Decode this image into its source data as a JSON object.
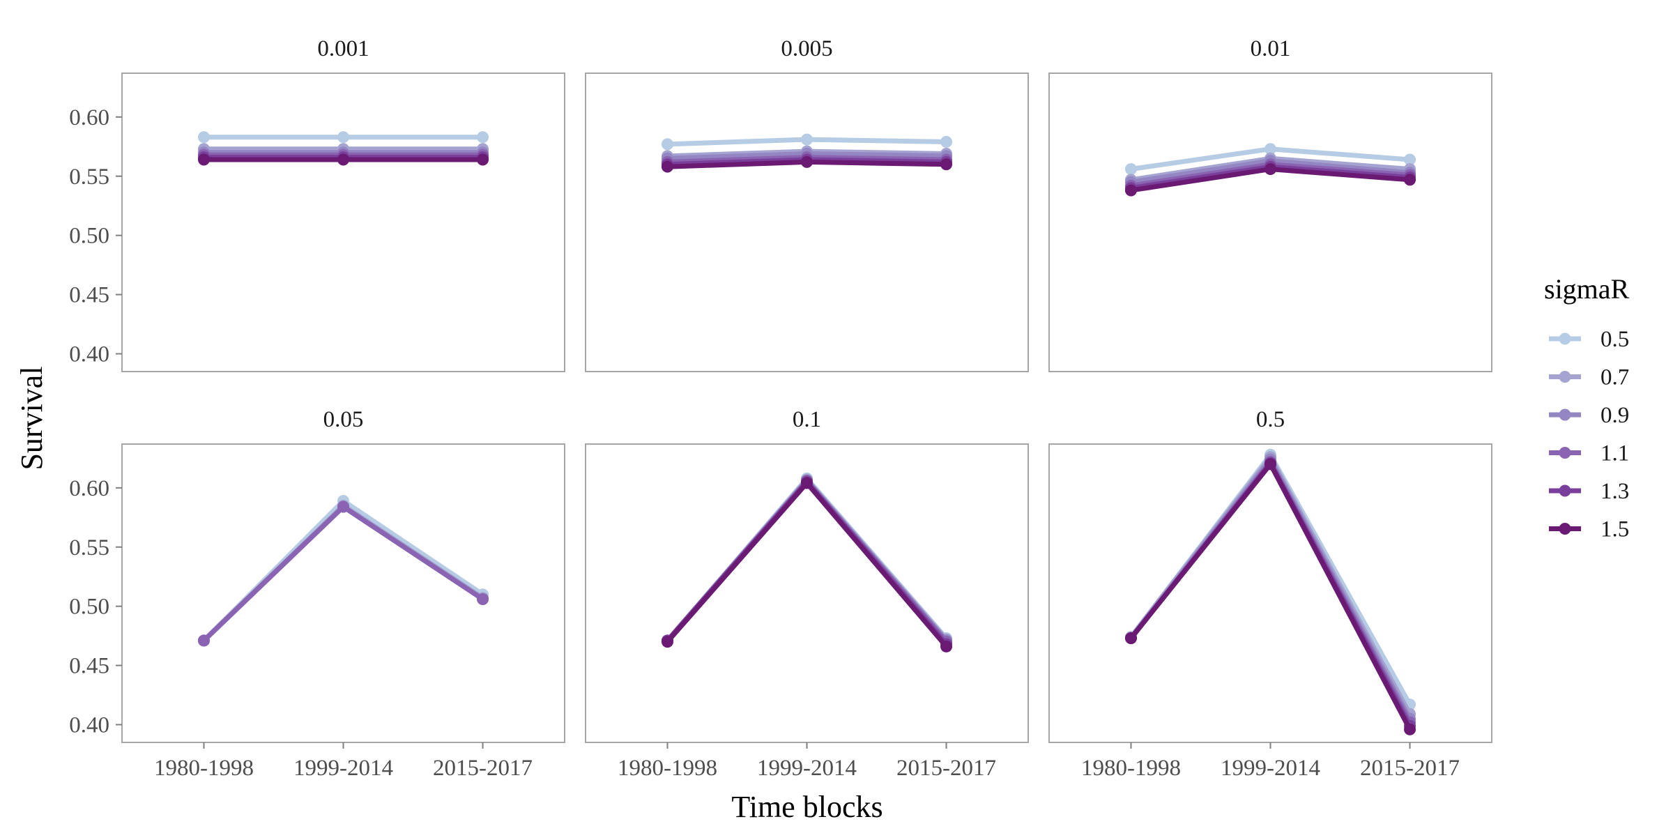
{
  "chart_data": {
    "type": "line",
    "facets": [
      "0.001",
      "0.005",
      "0.01",
      "0.05",
      "0.1",
      "0.5"
    ],
    "categories": [
      "1980-1998",
      "1999-2014",
      "2015-2017"
    ],
    "xlabel": "Time blocks",
    "ylabel": "Survival",
    "ylim": [
      0.385,
      0.637
    ],
    "yticks": [
      0.4,
      0.45,
      0.5,
      0.55,
      0.6
    ],
    "ytick_labels": [
      "0.40",
      "0.45",
      "0.50",
      "0.55",
      "0.60"
    ],
    "legend": {
      "title": "sigmaR",
      "position": "right",
      "entries": [
        "0.5",
        "0.7",
        "0.9",
        "1.1",
        "1.3",
        "1.5"
      ]
    },
    "grid": false,
    "colors": [
      "#b6cce4",
      "#a5a4d0",
      "#9485c3",
      "#8a64b2",
      "#7a3f9a",
      "#6a1a73"
    ],
    "panels": [
      {
        "facet": "0.001",
        "series": [
          {
            "name": "0.5",
            "values": [
              0.583,
              0.583,
              0.583
            ]
          },
          {
            "name": "0.7",
            "values": [
              0.573,
              0.573,
              0.573
            ]
          },
          {
            "name": "0.9",
            "values": [
              0.57,
              0.57,
              0.57
            ]
          },
          {
            "name": "1.1",
            "values": [
              0.568,
              0.568,
              0.568
            ]
          },
          {
            "name": "1.3",
            "values": [
              0.566,
              0.566,
              0.566
            ]
          },
          {
            "name": "1.5",
            "values": [
              0.564,
              0.564,
              0.564
            ]
          }
        ]
      },
      {
        "facet": "0.005",
        "series": [
          {
            "name": "0.5",
            "values": [
              0.577,
              0.581,
              0.579
            ]
          },
          {
            "name": "0.7",
            "values": [
              0.567,
              0.571,
              0.569
            ]
          },
          {
            "name": "0.9",
            "values": [
              0.565,
              0.569,
              0.567
            ]
          },
          {
            "name": "1.1",
            "values": [
              0.562,
              0.566,
              0.564
            ]
          },
          {
            "name": "1.3",
            "values": [
              0.56,
              0.564,
              0.562
            ]
          },
          {
            "name": "1.5",
            "values": [
              0.558,
              0.562,
              0.56
            ]
          }
        ]
      },
      {
        "facet": "0.01",
        "series": [
          {
            "name": "0.5",
            "values": [
              0.556,
              0.573,
              0.564
            ]
          },
          {
            "name": "0.7",
            "values": [
              0.547,
              0.565,
              0.556
            ]
          },
          {
            "name": "0.9",
            "values": [
              0.545,
              0.563,
              0.553
            ]
          },
          {
            "name": "1.1",
            "values": [
              0.542,
              0.56,
              0.551
            ]
          },
          {
            "name": "1.3",
            "values": [
              0.54,
              0.558,
              0.549
            ]
          },
          {
            "name": "1.5",
            "values": [
              0.538,
              0.556,
              0.547
            ]
          }
        ]
      },
      {
        "facet": "0.05",
        "series": [
          {
            "name": "0.5",
            "values": [
              0.471,
              0.589,
              0.51
            ]
          },
          {
            "name": "0.7",
            "values": [
              0.471,
              0.585,
              0.507
            ]
          },
          {
            "name": "0.9",
            "values": [
              0.471,
              0.584,
              0.506
            ]
          },
          {
            "name": "1.1",
            "values": [
              0.471,
              0.584,
              0.506
            ]
          }
        ]
      },
      {
        "facet": "0.1",
        "series": [
          {
            "name": "0.5",
            "values": [
              0.471,
              0.608,
              0.473
            ]
          },
          {
            "name": "0.7",
            "values": [
              0.471,
              0.607,
              0.472
            ]
          },
          {
            "name": "0.9",
            "values": [
              0.471,
              0.606,
              0.471
            ]
          },
          {
            "name": "1.1",
            "values": [
              0.471,
              0.606,
              0.47
            ]
          },
          {
            "name": "1.3",
            "values": [
              0.471,
              0.605,
              0.468
            ]
          },
          {
            "name": "1.5",
            "values": [
              0.47,
              0.604,
              0.466
            ]
          }
        ]
      },
      {
        "facet": "0.5",
        "series": [
          {
            "name": "0.5",
            "values": [
              0.474,
              0.628,
              0.417
            ]
          },
          {
            "name": "0.7",
            "values": [
              0.474,
              0.626,
              0.409
            ]
          },
          {
            "name": "0.9",
            "values": [
              0.473,
              0.624,
              0.405
            ]
          },
          {
            "name": "1.1",
            "values": [
              0.473,
              0.622,
              0.402
            ]
          },
          {
            "name": "1.3",
            "values": [
              0.473,
              0.621,
              0.399
            ]
          },
          {
            "name": "1.5",
            "values": [
              0.473,
              0.62,
              0.396
            ]
          }
        ]
      }
    ]
  }
}
